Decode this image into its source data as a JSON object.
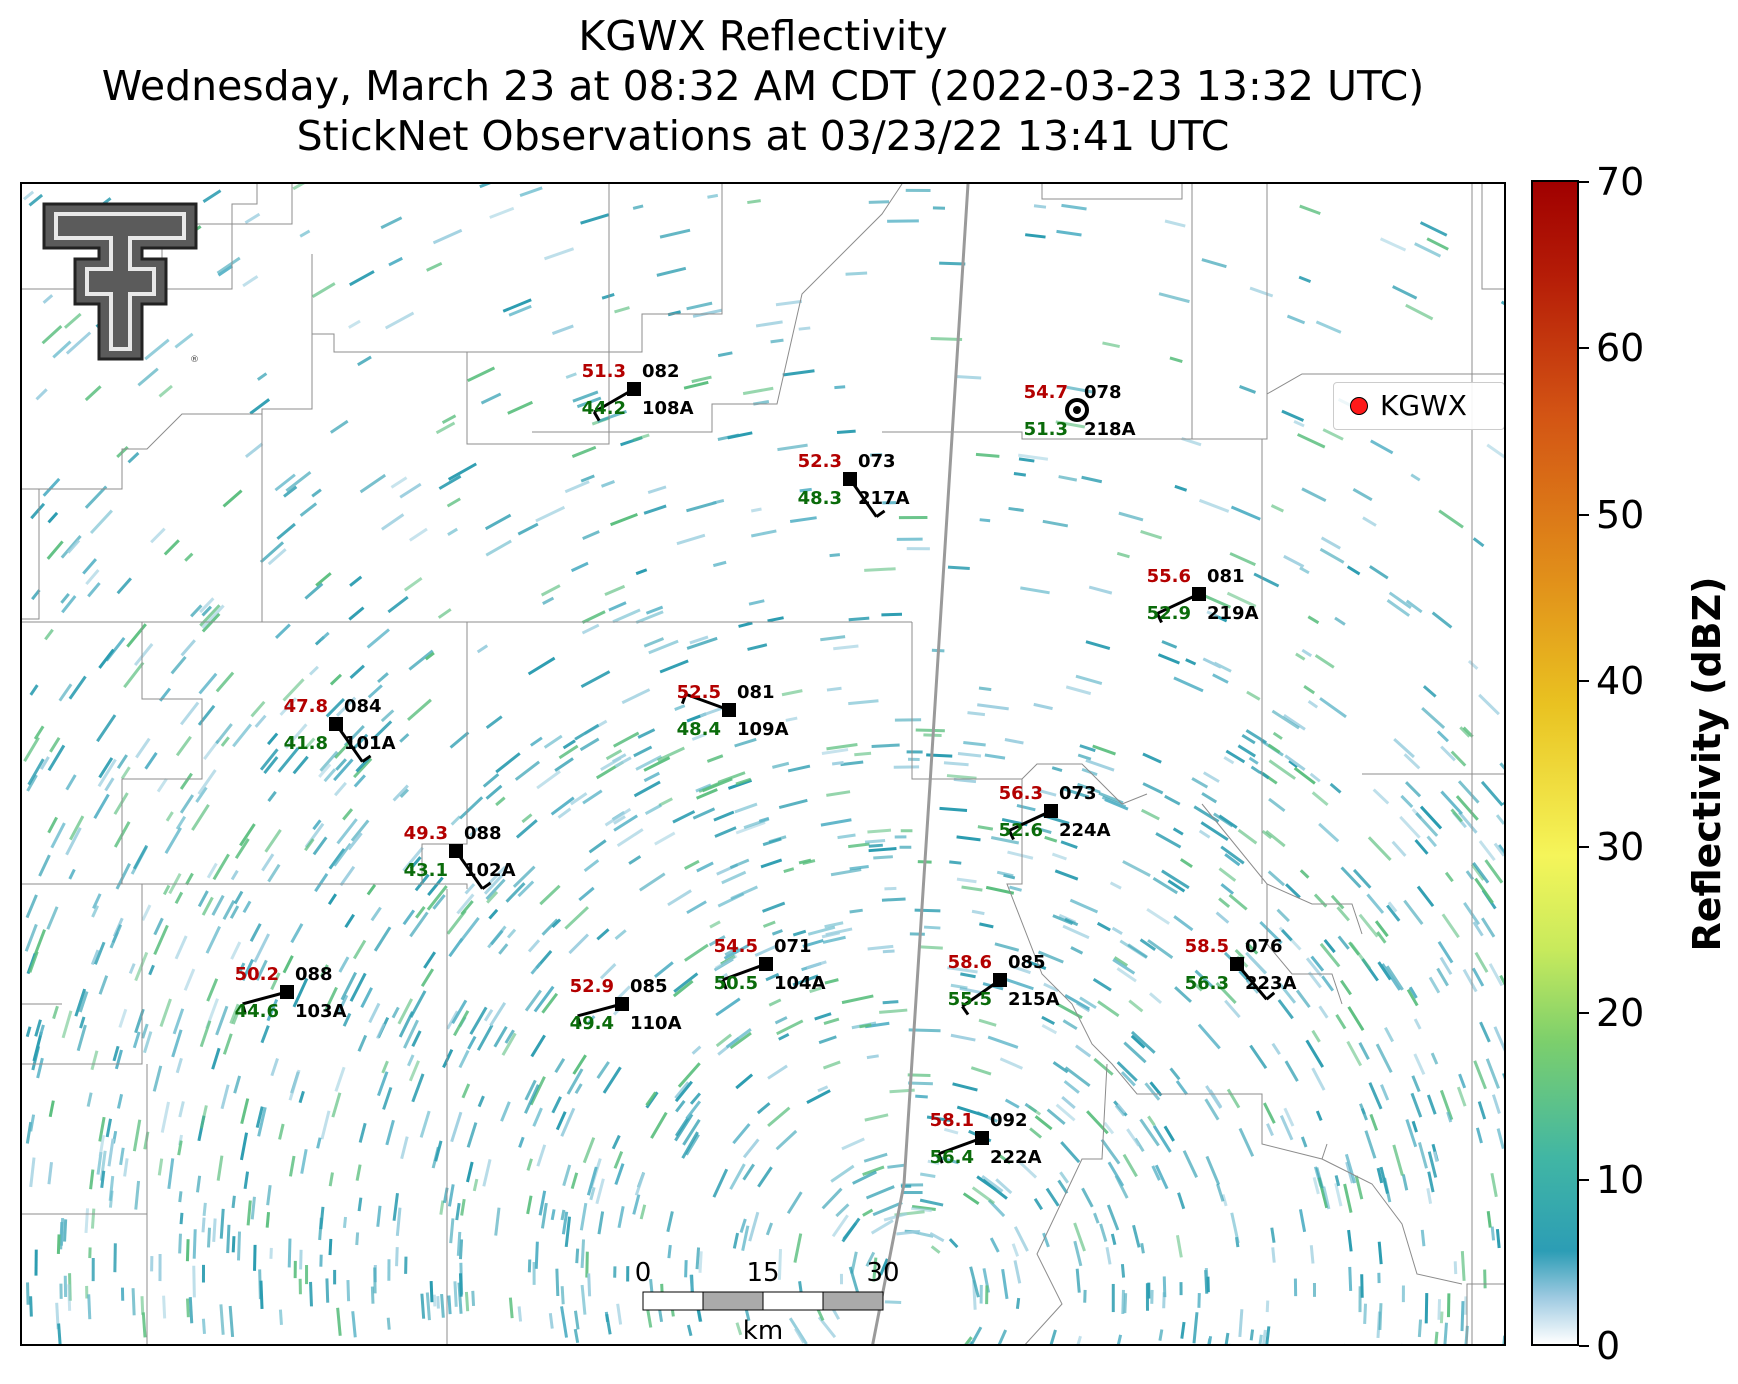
{
  "title": {
    "line1": "KGWX Reflectivity",
    "line2": "Wednesday, March 23 at 08:32 AM CDT (2022-03-23 13:32 UTC)",
    "line3": "StickNet Observations at 03/23/22 13:41 UTC"
  },
  "legend": {
    "label": "KGWX",
    "marker_color": "#ff1a1a"
  },
  "colorbar": {
    "label": "Reflectivity (dBZ)",
    "ticks": [
      "0",
      "10",
      "20",
      "30",
      "40",
      "50",
      "60",
      "70"
    ],
    "min": 0,
    "max": 70
  },
  "scale_bar": {
    "ticks": [
      "0",
      "15",
      "30"
    ],
    "unit": "km"
  },
  "logo": {
    "icon": "texas-tech-double-t-logo"
  },
  "stations": [
    {
      "id": "082",
      "temp": "51.3",
      "dew": "44.2",
      "name": "108A"
    },
    {
      "id": "073",
      "temp": "52.3",
      "dew": "48.3",
      "name": "217A"
    },
    {
      "id": "078",
      "temp": "54.7",
      "dew": "51.3",
      "name": "218A"
    },
    {
      "id": "081",
      "temp": "55.6",
      "dew": "52.9",
      "name": "219A"
    },
    {
      "id": "084",
      "temp": "47.8",
      "dew": "41.8",
      "name": "101A"
    },
    {
      "id": "081",
      "temp": "52.5",
      "dew": "48.4",
      "name": "109A"
    },
    {
      "id": "073",
      "temp": "56.3",
      "dew": "52.6",
      "name": "224A"
    },
    {
      "id": "088",
      "temp": "49.3",
      "dew": "43.1",
      "name": "102A"
    },
    {
      "id": "088",
      "temp": "50.2",
      "dew": "44.6",
      "name": "103A"
    },
    {
      "id": "085",
      "temp": "52.9",
      "dew": "49.4",
      "name": "110A"
    },
    {
      "id": "071",
      "temp": "54.5",
      "dew": "50.5",
      "name": "104A"
    },
    {
      "id": "085",
      "temp": "58.6",
      "dew": "55.5",
      "name": "215A"
    },
    {
      "id": "076",
      "temp": "58.5",
      "dew": "56.3",
      "name": "223A"
    },
    {
      "id": "092",
      "temp": "58.1",
      "dew": "56.4",
      "name": "222A"
    }
  ],
  "colors": {
    "echo_main": "#2b9cb0",
    "echo_light": "#9fd0e0",
    "echo_green": "#5cbf7f",
    "temp": "#b30000",
    "dew": "#0a6b0a"
  }
}
